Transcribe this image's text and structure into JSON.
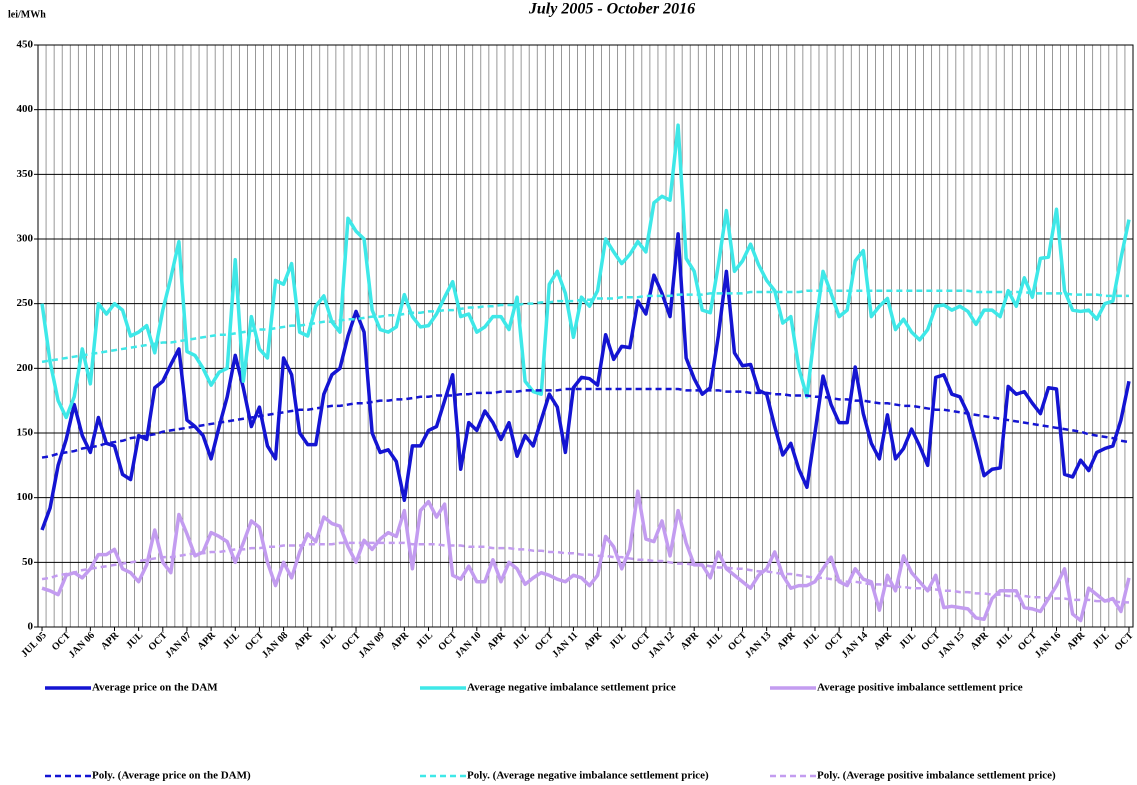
{
  "chart_data": {
    "type": "line",
    "title": "July 2005 - October 2016",
    "y_label": "lei/MWh",
    "categories": [
      "JUL 05",
      null,
      null,
      "OCT",
      null,
      null,
      "JAN 06",
      null,
      null,
      "APR",
      null,
      null,
      "JUL",
      null,
      null,
      "OCT",
      null,
      null,
      "JAN 07",
      null,
      null,
      "APR",
      null,
      null,
      "JUL",
      null,
      null,
      "OCT",
      null,
      null,
      "JAN 08",
      null,
      null,
      "APR",
      null,
      null,
      "JUL",
      null,
      null,
      "OCT",
      null,
      null,
      "JAN 09",
      null,
      null,
      "APR",
      null,
      null,
      "JUL",
      null,
      null,
      "OCT",
      null,
      null,
      "JAN 10",
      null,
      null,
      "APR",
      null,
      null,
      "JUL",
      null,
      null,
      "OCT",
      null,
      null,
      "JAN 11",
      null,
      null,
      "APR",
      null,
      null,
      "JUL",
      null,
      null,
      "OCT",
      null,
      null,
      "JAN 12",
      null,
      null,
      "APR",
      null,
      null,
      "JUL",
      null,
      null,
      "OCT",
      null,
      null,
      "JAN 13",
      null,
      null,
      "APR",
      null,
      null,
      "JUL",
      null,
      null,
      "OCT",
      null,
      null,
      "JAN 14",
      null,
      null,
      "APR",
      null,
      null,
      "JUL",
      null,
      null,
      "OCT",
      null,
      null,
      "JAN 15",
      null,
      null,
      "APR",
      null,
      null,
      "JUL",
      null,
      null,
      "OCT",
      null,
      null,
      "JAN 16",
      null,
      null,
      "APR",
      null,
      null,
      "JUL",
      null,
      null,
      "OCT"
    ],
    "ylim": [
      0,
      450
    ],
    "yticks": [
      0,
      50,
      100,
      150,
      200,
      250,
      300,
      350,
      400,
      450
    ],
    "grid": true,
    "legend": "bottom",
    "series": [
      {
        "name": "Average price on the DAM",
        "color": "#1414d2",
        "style": "solid",
        "values": [
          75,
          92,
          125,
          145,
          172,
          148,
          135,
          162,
          142,
          140,
          118,
          114,
          148,
          145,
          185,
          190,
          203,
          215,
          160,
          155,
          148,
          130,
          155,
          178,
          210,
          185,
          155,
          170,
          140,
          130,
          208,
          195,
          150,
          141,
          141,
          180,
          195,
          200,
          225,
          244,
          228,
          150,
          135,
          137,
          128,
          98,
          140,
          140,
          152,
          155,
          175,
          195,
          122,
          158,
          152,
          167,
          158,
          145,
          158,
          132,
          148,
          140,
          160,
          180,
          170,
          135,
          185,
          193,
          192,
          187,
          226,
          207,
          217,
          216,
          252,
          242,
          272,
          258,
          240,
          304,
          208,
          192,
          180,
          185,
          225,
          275,
          212,
          202,
          203,
          183,
          180,
          155,
          133,
          142,
          122,
          108,
          150,
          194,
          172,
          158,
          158,
          201,
          165,
          142,
          130,
          164,
          130,
          138,
          153,
          140,
          125,
          193,
          195,
          180,
          178,
          165,
          142,
          117,
          122,
          123,
          186,
          180,
          182,
          173,
          165,
          185,
          184,
          118,
          116,
          129,
          121,
          135,
          138,
          140,
          160,
          190
        ]
      },
      {
        "name": "Average negative imbalance settlement price",
        "color": "#3ee8e8",
        "style": "solid",
        "values": [
          250,
          205,
          175,
          162,
          178,
          215,
          188,
          250,
          242,
          250,
          245,
          225,
          228,
          233,
          212,
          245,
          270,
          298,
          213,
          210,
          200,
          187,
          197,
          200,
          284,
          190,
          240,
          215,
          208,
          268,
          265,
          281,
          228,
          225,
          248,
          256,
          236,
          228,
          316,
          306,
          300,
          245,
          230,
          228,
          232,
          257,
          240,
          232,
          233,
          242,
          255,
          267,
          240,
          242,
          228,
          232,
          240,
          240,
          230,
          255,
          190,
          182,
          180,
          265,
          275,
          258,
          224,
          255,
          248,
          260,
          300,
          290,
          281,
          288,
          298,
          290,
          328,
          333,
          330,
          388,
          285,
          275,
          245,
          243,
          280,
          322,
          275,
          283,
          296,
          280,
          268,
          260,
          235,
          240,
          200,
          178,
          230,
          275,
          258,
          240,
          245,
          283,
          291,
          240,
          248,
          254,
          230,
          238,
          228,
          222,
          230,
          248,
          249,
          245,
          248,
          244,
          234,
          245,
          245,
          240,
          260,
          248,
          270,
          255,
          285,
          286,
          323,
          260,
          245,
          244,
          245,
          238,
          250,
          252,
          285,
          315
        ]
      },
      {
        "name": "Average positive imbalance settlement price",
        "color": "#c39cf0",
        "style": "solid",
        "values": [
          30,
          28,
          25,
          40,
          42,
          38,
          45,
          56,
          56,
          60,
          45,
          42,
          35,
          48,
          75,
          50,
          42,
          87,
          72,
          55,
          58,
          73,
          70,
          66,
          50,
          65,
          82,
          77,
          50,
          32,
          50,
          38,
          58,
          72,
          66,
          85,
          80,
          78,
          62,
          50,
          67,
          60,
          68,
          73,
          70,
          90,
          45,
          90,
          97,
          85,
          95,
          40,
          37,
          47,
          35,
          35,
          52,
          35,
          50,
          45,
          33,
          38,
          42,
          40,
          37,
          35,
          40,
          38,
          32,
          40,
          70,
          62,
          45,
          60,
          105,
          68,
          66,
          82,
          55,
          90,
          65,
          48,
          48,
          38,
          58,
          45,
          40,
          35,
          30,
          40,
          45,
          58,
          40,
          30,
          32,
          32,
          35,
          45,
          54,
          35,
          32,
          45,
          37,
          35,
          13,
          40,
          28,
          55,
          42,
          35,
          28,
          40,
          15,
          16,
          15,
          14,
          7,
          6,
          22,
          28,
          28,
          28,
          15,
          14,
          12,
          22,
          32,
          45,
          10,
          5,
          30,
          25,
          20,
          22,
          12,
          38
        ]
      },
      {
        "name": "Poly. (Average price on the DAM)",
        "color": "#1414d2",
        "style": "dashed",
        "values": [
          131,
          132,
          134,
          135,
          136,
          138,
          139,
          140,
          142,
          143,
          144,
          146,
          147,
          148,
          149,
          151,
          152,
          153,
          154,
          155,
          156,
          157,
          158,
          159,
          160,
          161,
          162,
          163,
          164,
          165,
          166,
          167,
          168,
          168,
          169,
          170,
          171,
          171,
          172,
          173,
          173,
          174,
          175,
          175,
          176,
          176,
          177,
          178,
          178,
          179,
          179,
          179,
          180,
          180,
          181,
          181,
          181,
          182,
          182,
          182,
          183,
          183,
          183,
          183,
          183,
          184,
          184,
          184,
          184,
          184,
          184,
          184,
          184,
          184,
          184,
          184,
          184,
          184,
          184,
          184,
          183,
          183,
          183,
          183,
          183,
          182,
          182,
          182,
          181,
          181,
          181,
          180,
          180,
          179,
          179,
          179,
          178,
          178,
          177,
          176,
          176,
          175,
          175,
          174,
          173,
          173,
          172,
          171,
          171,
          170,
          169,
          168,
          168,
          167,
          166,
          165,
          164,
          163,
          162,
          161,
          160,
          159,
          158,
          157,
          156,
          155,
          154,
          153,
          152,
          151,
          149,
          148,
          147,
          146,
          144,
          143
        ]
      },
      {
        "name": "Poly. (Average negative imbalance settlement price)",
        "color": "#3ee8e8",
        "style": "dashed",
        "values": [
          205,
          206,
          207,
          208,
          209,
          210,
          211,
          212,
          213,
          214,
          215,
          216,
          217,
          218,
          219,
          220,
          220,
          221,
          222,
          223,
          224,
          225,
          226,
          226,
          227,
          228,
          229,
          230,
          230,
          231,
          232,
          233,
          233,
          234,
          235,
          236,
          236,
          237,
          238,
          238,
          239,
          240,
          240,
          241,
          241,
          242,
          243,
          243,
          244,
          244,
          245,
          245,
          246,
          247,
          247,
          248,
          248,
          249,
          249,
          249,
          250,
          250,
          251,
          251,
          252,
          252,
          252,
          253,
          253,
          254,
          254,
          254,
          255,
          255,
          255,
          256,
          256,
          256,
          256,
          257,
          257,
          257,
          257,
          258,
          258,
          258,
          258,
          258,
          259,
          259,
          259,
          259,
          259,
          259,
          259,
          260,
          260,
          260,
          260,
          260,
          260,
          260,
          260,
          260,
          260,
          260,
          260,
          260,
          260,
          260,
          260,
          260,
          260,
          260,
          260,
          260,
          259,
          259,
          259,
          259,
          259,
          259,
          259,
          258,
          258,
          258,
          258,
          258,
          257,
          257,
          257,
          257,
          256,
          256,
          256,
          256
        ]
      },
      {
        "name": "Poly. (Average positive imbalance settlement price)",
        "color": "#c39cf0",
        "style": "dashed",
        "values": [
          37,
          38,
          40,
          41,
          42,
          44,
          45,
          46,
          47,
          48,
          49,
          50,
          51,
          52,
          53,
          54,
          54,
          55,
          56,
          57,
          57,
          58,
          58,
          59,
          60,
          60,
          61,
          61,
          62,
          62,
          63,
          63,
          63,
          64,
          64,
          64,
          64,
          65,
          65,
          65,
          65,
          65,
          65,
          65,
          65,
          65,
          64,
          64,
          64,
          64,
          63,
          63,
          63,
          62,
          62,
          62,
          61,
          61,
          61,
          60,
          60,
          59,
          59,
          58,
          58,
          57,
          57,
          56,
          56,
          55,
          55,
          54,
          54,
          53,
          52,
          52,
          51,
          51,
          50,
          49,
          49,
          48,
          48,
          47,
          46,
          46,
          45,
          45,
          44,
          43,
          43,
          42,
          41,
          41,
          40,
          39,
          38,
          38,
          37,
          36,
          35,
          35,
          34,
          33,
          33,
          32,
          31,
          31,
          30,
          30,
          29,
          29,
          28,
          28,
          27,
          27,
          26,
          26,
          25,
          25,
          24,
          24,
          24,
          23,
          23,
          22,
          22,
          22,
          21,
          21,
          21,
          20,
          20,
          20,
          19,
          19
        ]
      }
    ]
  }
}
